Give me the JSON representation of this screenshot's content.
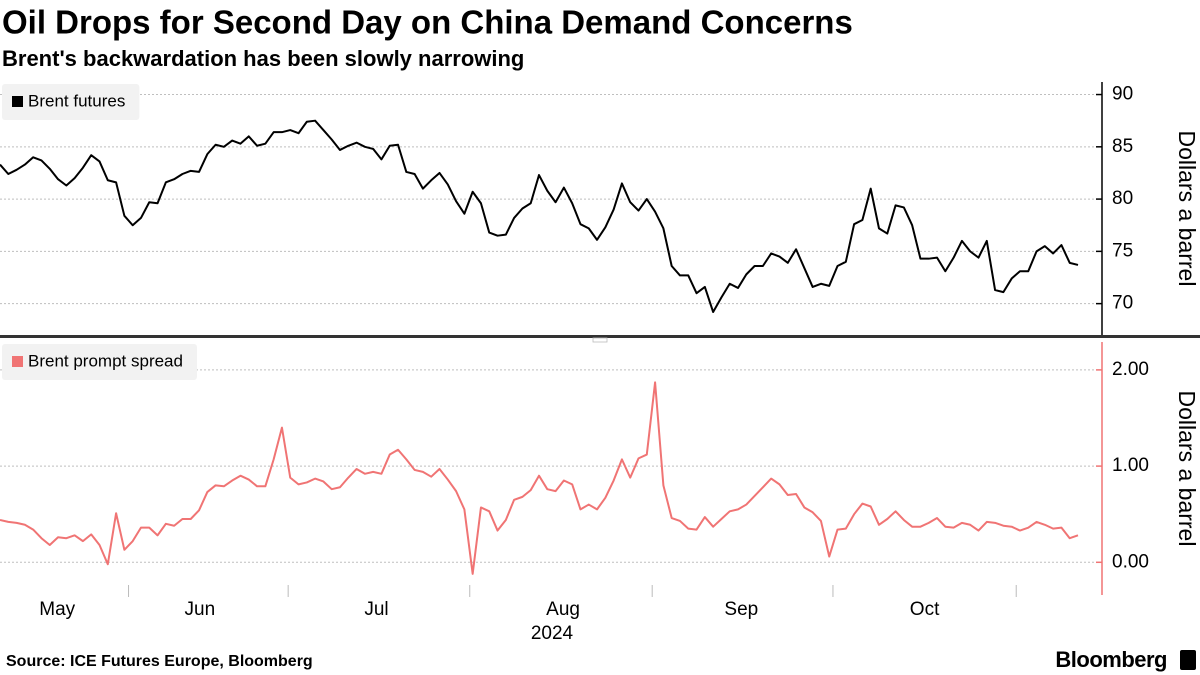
{
  "title": "Oil Drops for Second Day on China Demand Concerns",
  "subtitle": "Brent's backwardation has been slowly narrowing",
  "source": "Source: ICE Futures Europe, Bloomberg",
  "brand": "Bloomberg",
  "chart_data": [
    {
      "type": "line",
      "ylabel": "Dollars a barrel",
      "xlim": [
        0,
        130
      ],
      "ylim": [
        67,
        91.2
      ],
      "yticks": [
        70,
        75,
        80,
        85,
        90
      ],
      "grid": true,
      "axis_color": "#000000",
      "series": [
        {
          "name": "Brent futures",
          "color": "#000000",
          "values": [
            83.3,
            82.4,
            82.8,
            83.3,
            84.0,
            83.7,
            82.9,
            81.9,
            81.3,
            82.0,
            83.0,
            84.2,
            83.6,
            81.8,
            81.6,
            78.4,
            77.5,
            78.2,
            79.7,
            79.6,
            81.6,
            81.9,
            82.4,
            82.7,
            82.6,
            84.3,
            85.2,
            85.0,
            85.6,
            85.3,
            86.0,
            85.1,
            85.3,
            86.4,
            86.4,
            86.6,
            86.3,
            87.4,
            87.5,
            86.6,
            85.7,
            84.7,
            85.1,
            85.4,
            85.0,
            84.8,
            83.8,
            85.1,
            85.2,
            82.6,
            82.4,
            81.0,
            81.8,
            82.5,
            81.4,
            79.8,
            78.6,
            80.7,
            79.6,
            76.8,
            76.5,
            76.6,
            78.2,
            79.1,
            79.6,
            82.3,
            80.8,
            79.7,
            81.1,
            79.6,
            77.6,
            77.2,
            76.1,
            77.3,
            79.0,
            81.5,
            79.7,
            78.9,
            80.0,
            78.8,
            77.2,
            73.6,
            72.7,
            72.7,
            71.0,
            71.6,
            69.2,
            70.6,
            71.9,
            71.5,
            72.8,
            73.6,
            73.6,
            74.8,
            74.5,
            73.9,
            75.2,
            73.4,
            71.6,
            71.9,
            71.7,
            73.6,
            74.0,
            77.6,
            78.0,
            81.0,
            77.2,
            76.7,
            79.4,
            79.2,
            77.5,
            74.3,
            74.3,
            74.4,
            73.1,
            74.4,
            76.0,
            75.0,
            74.4,
            76.0,
            71.3,
            71.1,
            72.4,
            73.1,
            73.1,
            75.0,
            75.5,
            74.8,
            75.6,
            73.9,
            73.7
          ]
        }
      ]
    },
    {
      "type": "line",
      "ylabel": "Dollars a barrel",
      "xlabel": "2024",
      "xlim": [
        0,
        130
      ],
      "ylim": [
        -0.34,
        2.29
      ],
      "yticks": [
        {
          "value": 0,
          "label": "0.00"
        },
        {
          "value": 1,
          "label": "1.00"
        },
        {
          "value": 2,
          "label": "2.00"
        }
      ],
      "xticks": [
        {
          "value": 6.9,
          "label": "May"
        },
        {
          "value": 24.1,
          "label": "Jun"
        },
        {
          "value": 45.4,
          "label": "Jul"
        },
        {
          "value": 67.9,
          "label": "Aug"
        },
        {
          "value": 89.4,
          "label": "Sep"
        },
        {
          "value": 111.5,
          "label": "Oct"
        }
      ],
      "grid": true,
      "axis_color": "#f07474",
      "series": [
        {
          "name": "Brent prompt spread",
          "color": "#f07474",
          "values": [
            0.44,
            0.42,
            0.41,
            0.39,
            0.34,
            0.25,
            0.18,
            0.26,
            0.25,
            0.28,
            0.22,
            0.29,
            0.18,
            -0.02,
            0.51,
            0.13,
            0.22,
            0.36,
            0.36,
            0.28,
            0.4,
            0.38,
            0.45,
            0.45,
            0.54,
            0.73,
            0.8,
            0.79,
            0.85,
            0.9,
            0.86,
            0.79,
            0.79,
            1.07,
            1.4,
            0.88,
            0.81,
            0.83,
            0.87,
            0.84,
            0.76,
            0.78,
            0.88,
            0.97,
            0.92,
            0.94,
            0.92,
            1.12,
            1.17,
            1.07,
            0.96,
            0.94,
            0.89,
            0.97,
            0.86,
            0.74,
            0.55,
            -0.12,
            0.57,
            0.53,
            0.33,
            0.44,
            0.65,
            0.68,
            0.75,
            0.9,
            0.76,
            0.74,
            0.85,
            0.81,
            0.55,
            0.6,
            0.55,
            0.67,
            0.85,
            1.07,
            0.88,
            1.08,
            1.12,
            1.87,
            0.8,
            0.46,
            0.43,
            0.35,
            0.34,
            0.47,
            0.37,
            0.45,
            0.53,
            0.55,
            0.6,
            0.69,
            0.78,
            0.87,
            0.81,
            0.7,
            0.71,
            0.57,
            0.52,
            0.43,
            0.06,
            0.34,
            0.35,
            0.5,
            0.61,
            0.58,
            0.39,
            0.45,
            0.53,
            0.44,
            0.37,
            0.37,
            0.41,
            0.46,
            0.37,
            0.36,
            0.41,
            0.39,
            0.33,
            0.42,
            0.41,
            0.38,
            0.37,
            0.33,
            0.36,
            0.42,
            0.39,
            0.35,
            0.36,
            0.25,
            0.28
          ]
        }
      ]
    }
  ]
}
